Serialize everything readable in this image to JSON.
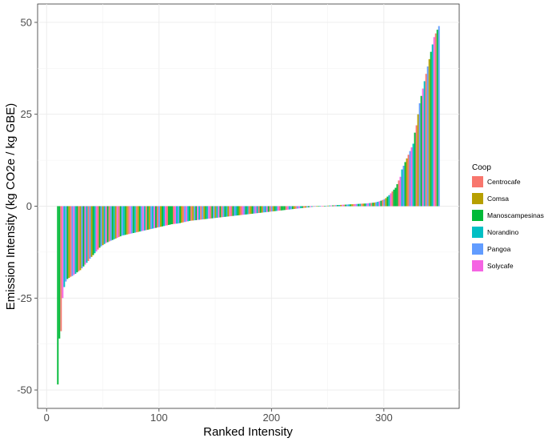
{
  "chart_data": {
    "type": "bar",
    "title": "",
    "xlabel": "Ranked Intensity",
    "ylabel": "Emission Intensity (kg CO2e / kg GBE)",
    "xlim": [
      -8,
      367
    ],
    "ylim": [
      -55,
      55
    ],
    "x_ticks": [
      0,
      100,
      200,
      300
    ],
    "y_ticks": [
      -50,
      -25,
      0,
      25,
      50
    ],
    "x_tick_labels": [
      "0",
      "100",
      "200",
      "300"
    ],
    "y_tick_labels": [
      "-50",
      "-25",
      "0",
      "25",
      "50"
    ],
    "grid": true,
    "legend_position": "right",
    "legend_title": "Coop",
    "series": [
      {
        "name": "Centrocafe",
        "color": "#F8766D"
      },
      {
        "name": "Comsa",
        "color": "#B79F00"
      },
      {
        "name": "Manoscampesinas",
        "color": "#00BA38"
      },
      {
        "name": "Norandino",
        "color": "#00BFC4"
      },
      {
        "name": "Pangoa",
        "color": "#619CFF"
      },
      {
        "name": "Solycafe",
        "color": "#F564E3"
      }
    ],
    "bars": {
      "rank_start": 10,
      "rank_end": 349,
      "values": [
        -48.5,
        -36,
        -34,
        -25,
        -22,
        -20.5,
        -19.8,
        -19.5,
        -19.2,
        -19,
        -18.7,
        -18.4,
        -18,
        -17.7,
        -17.4,
        -16.9,
        -16.4,
        -15.9,
        -15.4,
        -14.9,
        -14.3,
        -13.8,
        -13.3,
        -12.8,
        -12.3,
        -11.8,
        -11.3,
        -10.9,
        -10.6,
        -10.3,
        -10,
        -9.8,
        -9.6,
        -9.4,
        -9.2,
        -9,
        -8.8,
        -8.6,
        -8.4,
        -8.2,
        -8,
        -7.9,
        -7.8,
        -7.7,
        -7.6,
        -7.5,
        -7.4,
        -7.3,
        -7.2,
        -7.1,
        -7,
        -6.9,
        -6.8,
        -6.7,
        -6.6,
        -6.5,
        -6.4,
        -6.3,
        -6.2,
        -6.1,
        -6,
        -5.9,
        -5.8,
        -5.7,
        -5.6,
        -5.5,
        -5.4,
        -5.3,
        -5.2,
        -5.1,
        -5,
        -4.9,
        -4.85,
        -4.8,
        -4.75,
        -4.7,
        -4.6,
        -4.5,
        -4.4,
        -4.3,
        -4.2,
        -4.1,
        -4,
        -3.95,
        -3.9,
        -3.85,
        -3.8,
        -3.75,
        -3.7,
        -3.65,
        -3.6,
        -3.55,
        -3.5,
        -3.45,
        -3.4,
        -3.35,
        -3.3,
        -3.25,
        -3.2,
        -3.15,
        -3.1,
        -3.05,
        -3,
        -2.95,
        -2.9,
        -2.85,
        -2.8,
        -2.75,
        -2.7,
        -2.65,
        -2.6,
        -2.55,
        -2.5,
        -2.45,
        -2.4,
        -2.35,
        -2.3,
        -2.25,
        -2.2,
        -2.15,
        -2.1,
        -2.05,
        -2,
        -1.95,
        -1.9,
        -1.85,
        -1.8,
        -1.75,
        -1.7,
        -1.65,
        -1.6,
        -1.55,
        -1.5,
        -1.45,
        -1.4,
        -1.35,
        -1.3,
        -1.25,
        -1.2,
        -1.15,
        -1.1,
        -1.05,
        -1,
        -0.95,
        -0.9,
        -0.85,
        -0.8,
        -0.75,
        -0.7,
        -0.65,
        -0.6,
        -0.55,
        -0.5,
        -0.45,
        -0.4,
        -0.35,
        -0.3,
        -0.25,
        -0.2,
        -0.15,
        -0.1,
        -0.05,
        0,
        0.02,
        0.05,
        0.08,
        0.1,
        0.12,
        0.15,
        0.18,
        0.2,
        0.22,
        0.25,
        0.28,
        0.3,
        0.32,
        0.35,
        0.38,
        0.4,
        0.42,
        0.45,
        0.48,
        0.5,
        0.52,
        0.55,
        0.58,
        0.6,
        0.62,
        0.65,
        0.68,
        0.7,
        0.72,
        0.75,
        0.8,
        0.85,
        0.9,
        0.95,
        1,
        1.1,
        1.2,
        1.35,
        1.5,
        1.7,
        1.9,
        2.2,
        2.6,
        3,
        3.5,
        4,
        4.5,
        5,
        6,
        7,
        8,
        10,
        11,
        12,
        13,
        14,
        15,
        16,
        17,
        20,
        22,
        25,
        28,
        30,
        32,
        34,
        36,
        38,
        40,
        42,
        44,
        46,
        47,
        48,
        49
      ],
      "coop_sequence": [
        2,
        2,
        0,
        5,
        3,
        4,
        2,
        1,
        0,
        4,
        5,
        3,
        2,
        0,
        1,
        4,
        2,
        5,
        3,
        0,
        4,
        1,
        2,
        3,
        5,
        0,
        2,
        4,
        1,
        3,
        5,
        2,
        0,
        4,
        2,
        3,
        1,
        5,
        0,
        2,
        4,
        3,
        2,
        1,
        0,
        5,
        4,
        2,
        3,
        0,
        1,
        2,
        4,
        5,
        3,
        0,
        2,
        1,
        4,
        3,
        5,
        2,
        0,
        4,
        1,
        2,
        3,
        5,
        0,
        2
      ]
    }
  }
}
